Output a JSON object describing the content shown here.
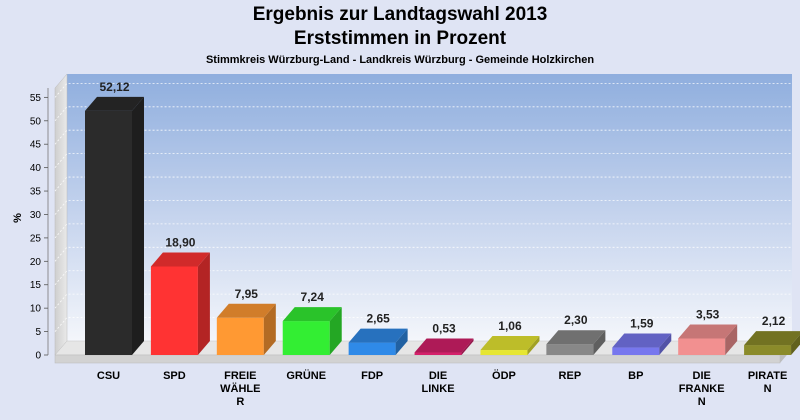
{
  "chart_data": {
    "type": "bar",
    "title": "Ergebnis zur Landtagswahl 2013",
    "subtitle": "Erststimmen in Prozent",
    "caption": "Stimmkreis Würzburg-Land - Landkreis Würzburg - Gemeinde Holzkirchen",
    "xlabel": "",
    "ylabel": "%",
    "ylim": [
      0,
      57
    ],
    "yticks": [
      0,
      5,
      10,
      15,
      20,
      25,
      30,
      35,
      40,
      45,
      50,
      55
    ],
    "grid": true,
    "categories": [
      [
        "CSU"
      ],
      [
        "SPD"
      ],
      [
        "FREIE",
        "WÄHLE",
        "R"
      ],
      [
        "GRÜNE"
      ],
      [
        "FDP"
      ],
      [
        "DIE",
        "LINKE"
      ],
      [
        "ÖDP"
      ],
      [
        "REP"
      ],
      [
        "BP"
      ],
      [
        "DIE",
        "FRANKE",
        "N"
      ],
      [
        "PIRATE",
        "N"
      ]
    ],
    "values": [
      52.12,
      18.9,
      7.95,
      7.24,
      2.65,
      0.53,
      1.06,
      2.3,
      1.59,
      3.53,
      2.12
    ],
    "value_labels": [
      "52,12",
      "18,90",
      "7,95",
      "7,24",
      "2,65",
      "0,53",
      "1,06",
      "2,30",
      "1,59",
      "3,53",
      "2,12"
    ],
    "colors": [
      "#2b2b2b",
      "#ff3333",
      "#ff9933",
      "#33ee33",
      "#2f8ae8",
      "#d4206a",
      "#e6e632",
      "#888888",
      "#7777ee",
      "#f29090",
      "#8b8b2a"
    ]
  }
}
